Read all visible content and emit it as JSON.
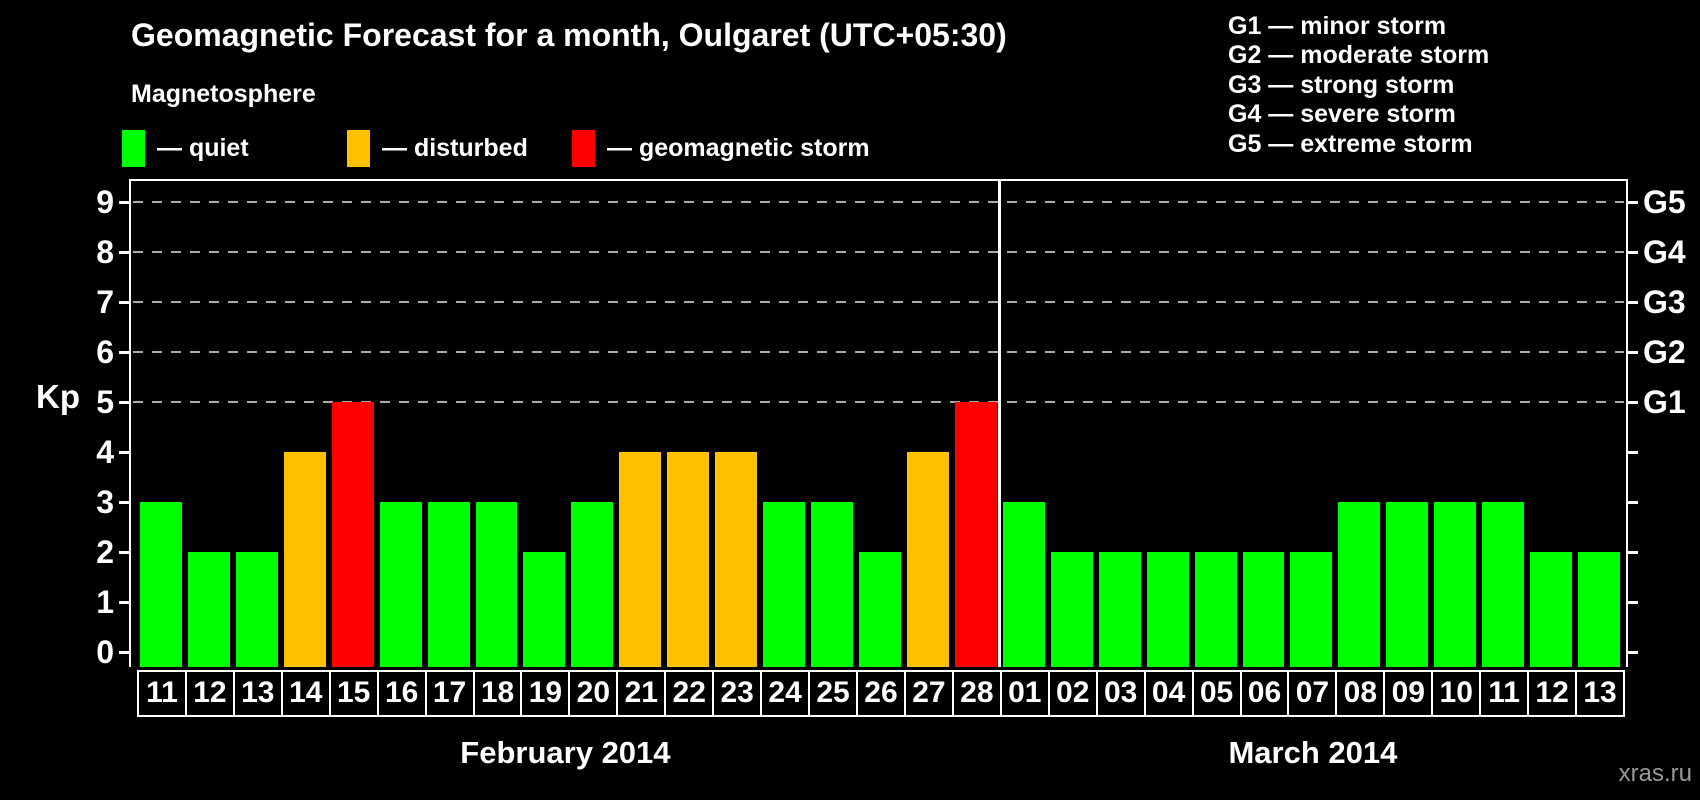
{
  "title": "Geomagnetic Forecast for a month, Oulgaret (UTC+05:30)",
  "magnetosphere": {
    "heading": "Magnetosphere",
    "legend": [
      {
        "key": "quiet",
        "label": "— quiet",
        "color": "#00ff00"
      },
      {
        "key": "disturbed",
        "label": "— disturbed",
        "color": "#ffc000"
      },
      {
        "key": "storm",
        "label": "— geomagnetic storm",
        "color": "#ff0000"
      }
    ]
  },
  "g_scale_legend": [
    "G1 — minor storm",
    "G2 — moderate storm",
    "G3 — strong storm",
    "G4 — severe storm",
    "G5 — extreme storm"
  ],
  "watermark": "xras.ru",
  "chart_data": {
    "type": "bar",
    "ylabel": "Kp",
    "ylim": [
      0,
      9
    ],
    "yticks": [
      0,
      1,
      2,
      3,
      4,
      5,
      6,
      7,
      8,
      9
    ],
    "gridlines_at_kp": [
      5,
      6,
      7,
      8,
      9
    ],
    "grid": "dashed-horizontal",
    "legend_position": "top",
    "right_axis": [
      {
        "kp": 5,
        "label": "G1"
      },
      {
        "kp": 6,
        "label": "G2"
      },
      {
        "kp": 7,
        "label": "G3"
      },
      {
        "kp": 8,
        "label": "G4"
      },
      {
        "kp": 9,
        "label": "G5"
      }
    ],
    "level_colors": {
      "quiet": "#00ff00",
      "disturbed": "#ffc000",
      "storm": "#ff0000"
    },
    "months": [
      {
        "label": "February 2014",
        "days": [
          {
            "day": "11",
            "kp": 3,
            "level": "quiet"
          },
          {
            "day": "12",
            "kp": 2,
            "level": "quiet"
          },
          {
            "day": "13",
            "kp": 2,
            "level": "quiet"
          },
          {
            "day": "14",
            "kp": 4,
            "level": "disturbed"
          },
          {
            "day": "15",
            "kp": 5,
            "level": "storm"
          },
          {
            "day": "16",
            "kp": 3,
            "level": "quiet"
          },
          {
            "day": "17",
            "kp": 3,
            "level": "quiet"
          },
          {
            "day": "18",
            "kp": 3,
            "level": "quiet"
          },
          {
            "day": "19",
            "kp": 2,
            "level": "quiet"
          },
          {
            "day": "20",
            "kp": 3,
            "level": "quiet"
          },
          {
            "day": "21",
            "kp": 4,
            "level": "disturbed"
          },
          {
            "day": "22",
            "kp": 4,
            "level": "disturbed"
          },
          {
            "day": "23",
            "kp": 4,
            "level": "disturbed"
          },
          {
            "day": "24",
            "kp": 3,
            "level": "quiet"
          },
          {
            "day": "25",
            "kp": 3,
            "level": "quiet"
          },
          {
            "day": "26",
            "kp": 2,
            "level": "quiet"
          },
          {
            "day": "27",
            "kp": 4,
            "level": "disturbed"
          },
          {
            "day": "28",
            "kp": 5,
            "level": "storm"
          }
        ]
      },
      {
        "label": "March 2014",
        "days": [
          {
            "day": "01",
            "kp": 3,
            "level": "quiet"
          },
          {
            "day": "02",
            "kp": 2,
            "level": "quiet"
          },
          {
            "day": "03",
            "kp": 2,
            "level": "quiet"
          },
          {
            "day": "04",
            "kp": 2,
            "level": "quiet"
          },
          {
            "day": "05",
            "kp": 2,
            "level": "quiet"
          },
          {
            "day": "06",
            "kp": 2,
            "level": "quiet"
          },
          {
            "day": "07",
            "kp": 2,
            "level": "quiet"
          },
          {
            "day": "08",
            "kp": 3,
            "level": "quiet"
          },
          {
            "day": "09",
            "kp": 3,
            "level": "quiet"
          },
          {
            "day": "10",
            "kp": 3,
            "level": "quiet"
          },
          {
            "day": "11",
            "kp": 3,
            "level": "quiet"
          },
          {
            "day": "12",
            "kp": 2,
            "level": "quiet"
          },
          {
            "day": "13",
            "kp": 2,
            "level": "quiet"
          }
        ]
      }
    ]
  }
}
